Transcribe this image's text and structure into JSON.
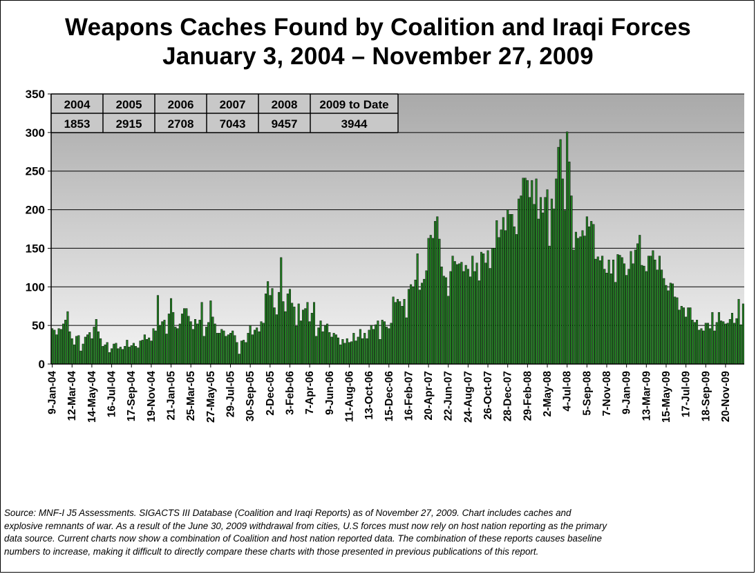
{
  "chart_data": {
    "type": "bar",
    "title": "Weapons Caches Found by Coalition and Iraqi Forces",
    "subtitle": "January 3, 2004 – November 27, 2009",
    "xlabel": "",
    "ylabel": "",
    "ylim": [
      0,
      350
    ],
    "yticks": [
      "0",
      "50",
      "100",
      "150",
      "200",
      "250",
      "300",
      "350"
    ],
    "grid": true,
    "bar_color": "#1f7a1f",
    "annual_table": {
      "headers": [
        "2004",
        "2005",
        "2006",
        "2007",
        "2008",
        "2009 to Date"
      ],
      "totals": [
        "1853",
        "2915",
        "2708",
        "7043",
        "9457",
        "3944"
      ]
    },
    "tick_labels": [
      "9-Jan-04",
      "12-Mar-04",
      "14-May-04",
      "16-Jul-04",
      "17-Sep-04",
      "19-Nov-04",
      "21-Jan-05",
      "25-Mar-05",
      "27-May-05",
      "29-Jul-05",
      "30-Sep-05",
      "2-Dec-05",
      "3-Feb-06",
      "7-Apr-06",
      "9-Jun-06",
      "11-Aug-06",
      "13-Oct-06",
      "15-Dec-06",
      "16-Feb-07",
      "20-Apr-07",
      "22-Jun-07",
      "24-Aug-07",
      "26-Oct-07",
      "28-Dec-07",
      "29-Feb-08",
      "2-May-08",
      "4-Jul-08",
      "5-Sep-08",
      "7-Nov-08",
      "9-Jan-09",
      "13-Mar-09",
      "15-May-09",
      "17-Jul-09",
      "18-Sep-09",
      "20-Nov-09"
    ],
    "values": [
      46,
      44,
      38,
      46,
      45,
      52,
      57,
      68,
      42,
      33,
      25,
      36,
      37,
      17,
      26,
      35,
      38,
      41,
      33,
      48,
      58,
      42,
      33,
      23,
      25,
      28,
      15,
      20,
      26,
      27,
      20,
      22,
      19,
      23,
      31,
      22,
      24,
      27,
      23,
      21,
      30,
      31,
      38,
      32,
      34,
      30,
      46,
      43,
      89,
      50,
      55,
      57,
      39,
      65,
      85,
      67,
      48,
      46,
      52,
      65,
      72,
      72,
      62,
      55,
      45,
      58,
      52,
      57,
      80,
      36,
      48,
      54,
      82,
      61,
      52,
      40,
      40,
      45,
      43,
      36,
      38,
      40,
      43,
      37,
      28,
      13,
      30,
      31,
      28,
      40,
      50,
      38,
      44,
      47,
      42,
      55,
      53,
      91,
      107,
      89,
      98,
      73,
      64,
      93,
      138,
      81,
      68,
      91,
      97,
      79,
      74,
      49,
      78,
      56,
      70,
      72,
      80,
      55,
      66,
      80,
      36,
      47,
      56,
      42,
      50,
      52,
      41,
      35,
      40,
      38,
      34,
      25,
      32,
      27,
      33,
      28,
      29,
      40,
      30,
      35,
      45,
      33,
      40,
      33,
      44,
      50,
      45,
      51,
      56,
      32,
      57,
      55,
      48,
      46,
      53,
      87,
      80,
      84,
      81,
      75,
      84,
      60,
      97,
      103,
      100,
      109,
      143,
      96,
      105,
      110,
      121,
      163,
      167,
      163,
      185,
      191,
      162,
      126,
      114,
      112,
      88,
      120,
      140,
      133,
      129,
      130,
      132,
      120,
      128,
      123,
      113,
      140,
      120,
      131,
      108,
      145,
      143,
      131,
      147,
      124,
      150,
      150,
      186,
      164,
      174,
      190,
      173,
      200,
      194,
      194,
      178,
      168,
      214,
      218,
      241,
      241,
      238,
      216,
      238,
      207,
      240,
      188,
      216,
      196,
      216,
      226,
      153,
      214,
      201,
      240,
      281,
      291,
      240,
      199,
      301,
      262,
      218,
      148,
      171,
      163,
      165,
      173,
      166,
      191,
      178,
      185,
      181,
      136,
      139,
      134,
      140,
      123,
      118,
      135,
      117,
      135,
      106,
      142,
      141,
      138,
      130,
      115,
      123,
      146,
      130,
      148,
      156,
      167,
      128,
      127,
      120,
      140,
      140,
      147,
      135,
      122,
      140,
      122,
      111,
      102,
      95,
      105,
      104,
      87,
      86,
      70,
      75,
      73,
      61,
      73,
      73,
      57,
      54,
      57,
      44,
      46,
      43,
      53,
      53,
      46,
      67,
      43,
      54,
      67,
      56,
      55,
      52,
      53,
      58,
      66,
      53,
      59,
      84,
      51,
      78
    ]
  },
  "source_note": [
    "Source:  MNF-I J5 Assessments.  SIGACTS III Database (Coalition and Iraqi Reports) as of November 27, 2009.  Chart includes caches and",
    "explosive remnants of war. As a result of the June 30, 2009 withdrawal from cities, U.S forces must now rely on host nation reporting as the primary",
    "data source. Current charts now show a combination of Coalition and host nation reported data.  The combination of these reports causes baseline",
    "numbers to increase, making it difficult to directly compare these charts with those presented in previous publications of this report."
  ]
}
